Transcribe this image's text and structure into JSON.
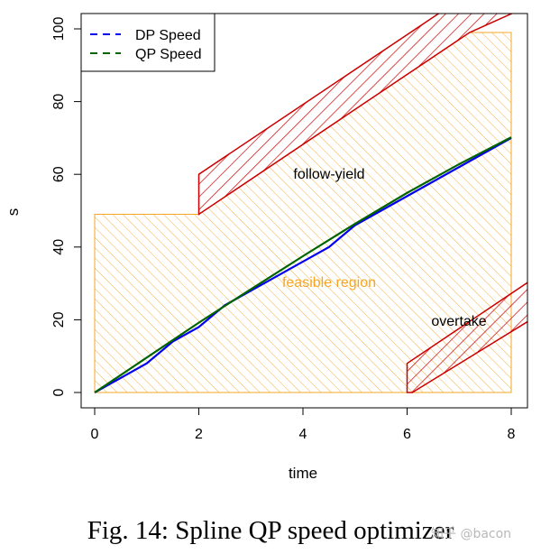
{
  "chart_data": {
    "type": "line",
    "title": "",
    "xlabel": "time",
    "ylabel": "s",
    "xlim": [
      0,
      8
    ],
    "ylim": [
      0,
      100
    ],
    "x_ticks": [
      "0",
      "2",
      "4",
      "6",
      "8"
    ],
    "y_ticks": [
      "0",
      "20",
      "40",
      "60",
      "80",
      "100"
    ],
    "legend_position": "top-left",
    "series": [
      {
        "name": "DP Speed",
        "color": "#0000ee",
        "dash": "dashed",
        "x": [
          0,
          1,
          1.5,
          2,
          2.5,
          3,
          3.5,
          4,
          4.5,
          5,
          5.5,
          6,
          6.5,
          7,
          7.5,
          8
        ],
        "y": [
          0,
          8,
          14,
          18,
          24,
          28,
          32,
          36,
          40,
          46,
          50,
          54,
          58,
          62,
          66,
          70
        ]
      },
      {
        "name": "QP Speed",
        "color": "#006400",
        "dash": "dashed",
        "x": [
          0,
          1,
          2,
          3,
          4,
          5,
          6,
          7,
          8
        ],
        "y": [
          0,
          9.6,
          19.2,
          28.4,
          37.5,
          46.4,
          54.9,
          62.8,
          70.2
        ]
      }
    ],
    "regions": [
      {
        "name": "feasible region",
        "color": "#f5a623",
        "label_at": [
          4.5,
          30
        ],
        "polygon": [
          [
            0,
            0
          ],
          [
            6,
            0
          ],
          [
            6,
            0
          ],
          [
            8,
            0
          ],
          [
            8,
            99
          ],
          [
            7.2,
            99
          ],
          [
            2,
            49
          ],
          [
            0,
            49
          ]
        ],
        "polygon_note": "bottom edge 0..6 then to 8; top edge rises from (2,49) to (7.2,99)"
      },
      {
        "name": "follow-yield",
        "color": "#cc0000",
        "label_at": [
          4.5,
          60
        ],
        "polygon": [
          [
            2,
            49
          ],
          [
            2,
            60
          ],
          [
            7.0,
            104
          ],
          [
            8.3,
            104
          ],
          [
            8.3,
            104
          ],
          [
            7.2,
            99
          ],
          [
            2,
            49
          ]
        ]
      },
      {
        "name": "overtake",
        "color": "#cc0000",
        "label_at": [
          7.0,
          19
        ],
        "polygon": [
          [
            6,
            0
          ],
          [
            6,
            8
          ],
          [
            8.3,
            31
          ],
          [
            8.3,
            22
          ],
          [
            7.0,
            9
          ],
          [
            6.6,
            5
          ],
          [
            6,
            0
          ]
        ]
      }
    ]
  },
  "caption": "Fig. 14: Spline QP speed optimizer",
  "watermark": "知乎 @bacon"
}
